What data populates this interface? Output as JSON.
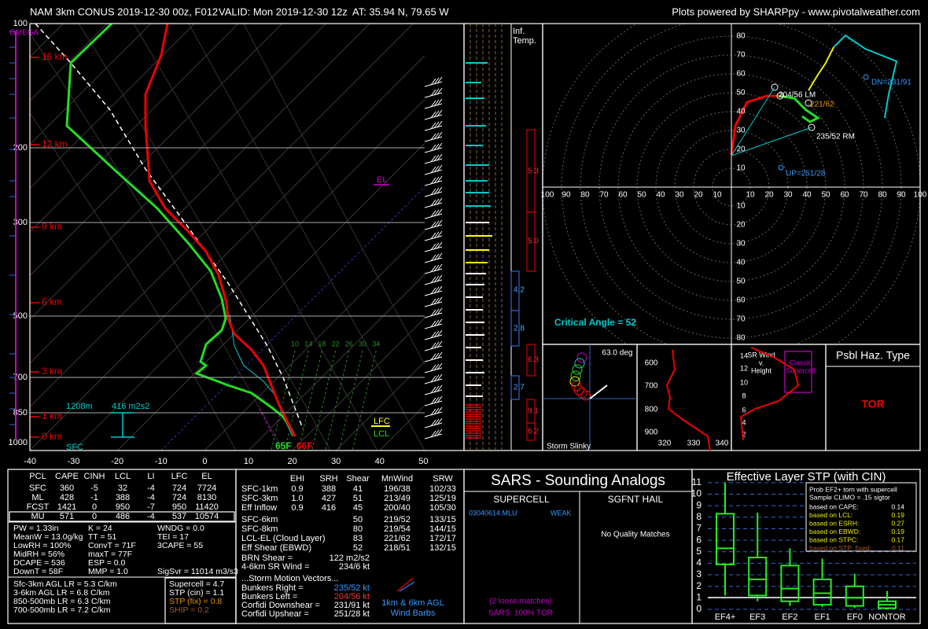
{
  "header": {
    "title": "NAM 3km CONUS 2019-12-30 00z, F012",
    "valid": "VALID: Mon 2019-12-30 12z",
    "location": "AT: 35.94 N, 79.65 W",
    "credit": "Plots powered by SHARPpy - www.pivotalweather.com"
  },
  "skewt": {
    "omega": "OMEGA",
    "pressure_ticks": [
      "100",
      "200",
      "300",
      "500",
      "700",
      "850",
      "1000"
    ],
    "temp_ticks": [
      "-40",
      "-30",
      "-20",
      "-10",
      "0",
      "10",
      "20",
      "30",
      "40",
      "50"
    ],
    "heights": [
      "16 km",
      "12 km",
      "9 km",
      "6 km",
      "3 km",
      "1 km",
      "0 km"
    ],
    "mixing_ratios": [
      "10",
      "14",
      "18",
      "22",
      "26",
      "30",
      "34"
    ],
    "el": "EL",
    "lfc": "LFC",
    "lcl": "LCL",
    "sfc_dewpoint": "65F",
    "sfc_temp": "66F",
    "eff_inflow_top": "1208m",
    "eff_srh": "416 m2s2",
    "sfc": "SFC"
  },
  "inferred_temp": {
    "label": [
      "Inf.",
      "Temp."
    ],
    "values": [
      "5.3",
      "5.0",
      "4.2",
      "2.8",
      "6.3",
      "2.7",
      "9.1",
      "6.2"
    ]
  },
  "hodograph": {
    "top_ticks": [
      "80",
      "70",
      "60",
      "50",
      "40",
      "30",
      "20",
      "10"
    ],
    "left_ticks": [
      "100",
      "90",
      "80",
      "70",
      "60",
      "50",
      "40",
      "30",
      "20",
      "10"
    ],
    "right_ticks": [
      "10",
      "20",
      "30",
      "40",
      "50",
      "60",
      "70",
      "80",
      "90",
      "100"
    ],
    "bottom_ticks": [
      "10",
      "20",
      "30",
      "40",
      "50",
      "60",
      "70",
      "80"
    ],
    "downshear": "DN=231/91",
    "upshear": "UP=251/28",
    "right_mover": "235/52 RM",
    "left_mover": "204/56 LM",
    "mean_wind": "221/62",
    "critical_angle": "Critical Angle = 52"
  },
  "slinky": {
    "angle": "63.0 deg",
    "title": "Storm Slinky"
  },
  "theta_e": {
    "pressure_ticks": [
      "600",
      "700",
      "800",
      "900"
    ],
    "theta_ticks": [
      "320",
      "330",
      "340"
    ]
  },
  "sr_wind": {
    "title": [
      "SR Wind",
      "v.",
      "Height"
    ],
    "reference": [
      "Classic",
      "Supercell"
    ],
    "height_ticks": [
      "14",
      "12",
      "10",
      "8",
      "6",
      "4",
      "2"
    ]
  },
  "hazard": {
    "title": "Psbl Haz. Type",
    "type": "TOR"
  },
  "parcel": {
    "headers": [
      "PCL",
      "CAPE",
      "CINH",
      "LCL",
      "LI",
      "LFC",
      "EL"
    ],
    "rows": [
      [
        "SFC",
        "360",
        "-5",
        "32",
        "-4",
        "724",
        "7724"
      ],
      [
        "ML",
        "428",
        "-1",
        "388",
        "-4",
        "724",
        "8130"
      ],
      [
        "FCST",
        "1421",
        "0",
        "950",
        "-7",
        "950",
        "11420"
      ],
      [
        "MU",
        "571",
        "0",
        "486",
        "-4",
        "537",
        "10574"
      ]
    ],
    "indices": [
      [
        "PW = 1.33in",
        "K = 24",
        "WNDG = 0.0"
      ],
      [
        "MeanW = 13.0g/kg",
        "TT = 51",
        "TEI = 17"
      ],
      [
        "LowRH = 100%",
        "ConvT = 71F",
        "3CAPE = 55"
      ],
      [
        "MidRH = 56%",
        "maxT = 77F"
      ],
      [
        "DCAPE = 536",
        "ESP = 0.0"
      ],
      [
        "DownT = 58F",
        "MMP = 1.0",
        "SigSvr = 11014 m3/s3"
      ]
    ],
    "lapse_rates": [
      "Sfc-3km AGL LR = 5.3 C/km",
      "3-6km AGL LR = 6.8 C/km",
      "850-500mb LR = 6.3 C/km",
      "700-500mb LR = 7.2 C/km"
    ],
    "composites": [
      "Supercell = 4.7",
      "STP (cin) = 1.1",
      "STP (fix) = 0.8",
      "SHIP = 0.2"
    ]
  },
  "kinematics": {
    "headers": [
      "EHI",
      "SRH",
      "Shear",
      "MnWind",
      "SRW"
    ],
    "rows": [
      {
        "name": "SFC-1km",
        "ehi": "0.9",
        "srh": "388",
        "shear": "41",
        "mnwind": "196/38",
        "srw": "102/33"
      },
      {
        "name": "SFC-3km",
        "ehi": "1.0",
        "srh": "427",
        "shear": "51",
        "mnwind": "213/49",
        "srw": "125/19"
      },
      {
        "name": "Eff Inflow",
        "ehi": "0.9",
        "srh": "416",
        "shear": "45",
        "mnwind": "200/40",
        "srw": "105/30"
      },
      {
        "name": "SFC-6km",
        "shear": "50",
        "mnwind": "219/52",
        "srw": "133/15"
      },
      {
        "name": "SFC-8km",
        "shear": "80",
        "mnwind": "219/54",
        "srw": "144/15"
      },
      {
        "name": "LCL-EL (Cloud Layer)",
        "shear": "83",
        "mnwind": "221/62",
        "srw": "172/17"
      },
      {
        "name": "Eff Shear (EBWD)",
        "shear": "52",
        "mnwind": "218/51",
        "srw": "132/15"
      }
    ],
    "extras": [
      {
        "name": "BRN Shear = ",
        "value": "122 m2/s2"
      },
      {
        "name": "4-6km SR Wind = ",
        "value": "234/6 kt"
      }
    ],
    "motion_title": "...Storm Motion Vectors...",
    "motions": [
      {
        "name": "Bunkers Right = ",
        "value": "235/52 kt"
      },
      {
        "name": "Bunkers Left = ",
        "value": "204/56 kt"
      },
      {
        "name": "Corfidi Downshear = ",
        "value": "231/91 kt"
      },
      {
        "name": "Corfidi Upshear = ",
        "value": "251/28 kt"
      }
    ],
    "barb_legend": [
      "1km & 6km AGL",
      "Wind Barbs"
    ]
  },
  "sars": {
    "title": "SARS - Sounding Analogs",
    "supercell": "SUPERCELL",
    "hail": "SGFNT HAIL",
    "match": "03040614.MLU",
    "match_type": "WEAK",
    "hail_result": "No Quality Matches",
    "loose": "(2 loose matches)",
    "summary": "SARS: 100% TOR"
  },
  "stp": {
    "title": "Effective Layer STP (with CIN)",
    "yticks": [
      "0",
      "1",
      "2",
      "3",
      "4",
      "5",
      "6",
      "7",
      "8",
      "9",
      "10",
      "11"
    ],
    "categories": [
      "EF4+",
      "EF3",
      "EF2",
      "EF1",
      "EF0",
      "NONTOR"
    ],
    "whisker_low": [
      1.2,
      0.7,
      0.3,
      0.2,
      0.1,
      0
    ],
    "q1": [
      3.9,
      1.2,
      0.7,
      0.4,
      0.3,
      0.1
    ],
    "median": [
      5.3,
      2.6,
      1.8,
      1.4,
      1.0,
      0.4
    ],
    "q3": [
      8.3,
      4.5,
      3.8,
      2.6,
      2.0,
      0.7
    ],
    "whisker_high": [
      11,
      8.4,
      5.3,
      4.4,
      3.1,
      1.6
    ],
    "legend_title": [
      "Prob EF2+ torn with supercell",
      "Sample CLIMO = .15 sigtor"
    ],
    "legend_rows": [
      {
        "label": "based on CAPE:",
        "value": "0.14"
      },
      {
        "label": "based on LCL:",
        "value": "0.19"
      },
      {
        "label": "based on ESRH:",
        "value": "0.27"
      },
      {
        "label": "based on EBWD:",
        "value": "0.19"
      },
      {
        "label": "based on STPC:",
        "value": "0.17"
      },
      {
        "label": "based on STP_fixed:",
        "value": "0.11"
      }
    ]
  }
}
